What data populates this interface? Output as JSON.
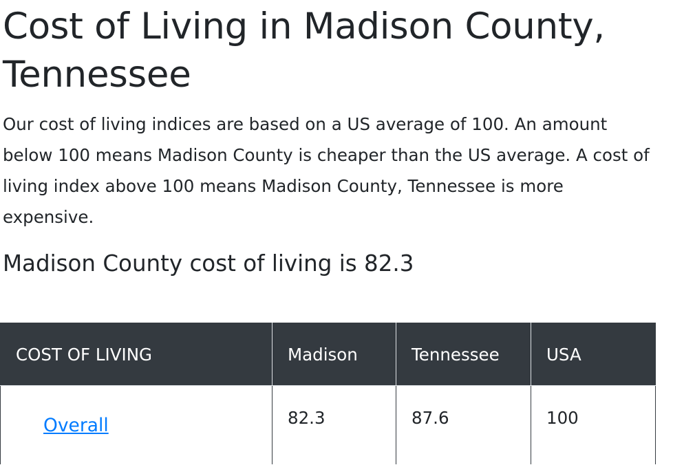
{
  "page": {
    "title": "Cost of Living in Madison County, Tennessee",
    "intro": "Our cost of living indices are based on a US average of 100. An amount below 100 means Madison County is cheaper than the US average. A cost of living index above 100 means Madison County, Tennessee is more expensive.",
    "headline": "Madison County cost of living is 82.3"
  },
  "table": {
    "headers": [
      "COST OF LIVING",
      "Madison",
      "Tennessee",
      "USA"
    ],
    "rows": [
      {
        "label": "Overall",
        "madison": "82.3",
        "tennessee": "87.6",
        "usa": "100"
      }
    ]
  },
  "colors": {
    "header_bg": "#343a40",
    "link": "#007bff",
    "text": "#212529"
  }
}
